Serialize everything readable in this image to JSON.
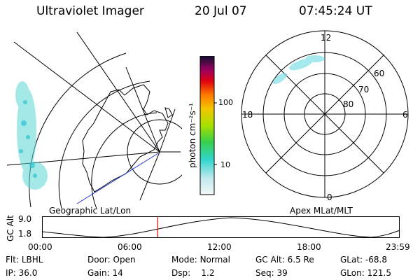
{
  "header": {
    "instrument": "Ultraviolet Imager",
    "date": "20 Jul 07",
    "time": "07:45:24 UT"
  },
  "colorbar": {
    "unit_label": "photon cm⁻²s⁻¹",
    "ticks": [
      "100",
      "10"
    ]
  },
  "left_panel": {
    "caption": "Geographic Lat/Lon"
  },
  "right_panel": {
    "caption": "Apex MLat/MLT",
    "mlt_labels": [
      "12",
      "18",
      "6",
      "0"
    ],
    "lat_labels": [
      "60",
      "70",
      "80"
    ]
  },
  "altitude_plot": {
    "ylabel": "GC Alt",
    "yticks": [
      "9.0",
      "1.8"
    ],
    "xticks": [
      "00:00",
      "06:00",
      "12:00",
      "18:00",
      "23:59"
    ],
    "marker_time_hours": 7.76
  },
  "info": {
    "flt": {
      "label": "Flt:",
      "value": "LBHL"
    },
    "ip": {
      "label": "IP:",
      "value": "36.0"
    },
    "door": {
      "label": "Door:",
      "value": "Open"
    },
    "gain": {
      "label": "Gain:",
      "value": "14"
    },
    "mode": {
      "label": "Mode:",
      "value": "Normal"
    },
    "dsp": {
      "label": "Dsp:",
      "value": "1.2"
    },
    "gcalt": {
      "label": "GC Alt:",
      "value": "6.5 Re"
    },
    "seq": {
      "label": "Seq:",
      "value": "39"
    },
    "glat": {
      "label": "GLat:",
      "value": "-68.8"
    },
    "glon": {
      "label": "GLon:",
      "value": "121.5"
    }
  }
}
